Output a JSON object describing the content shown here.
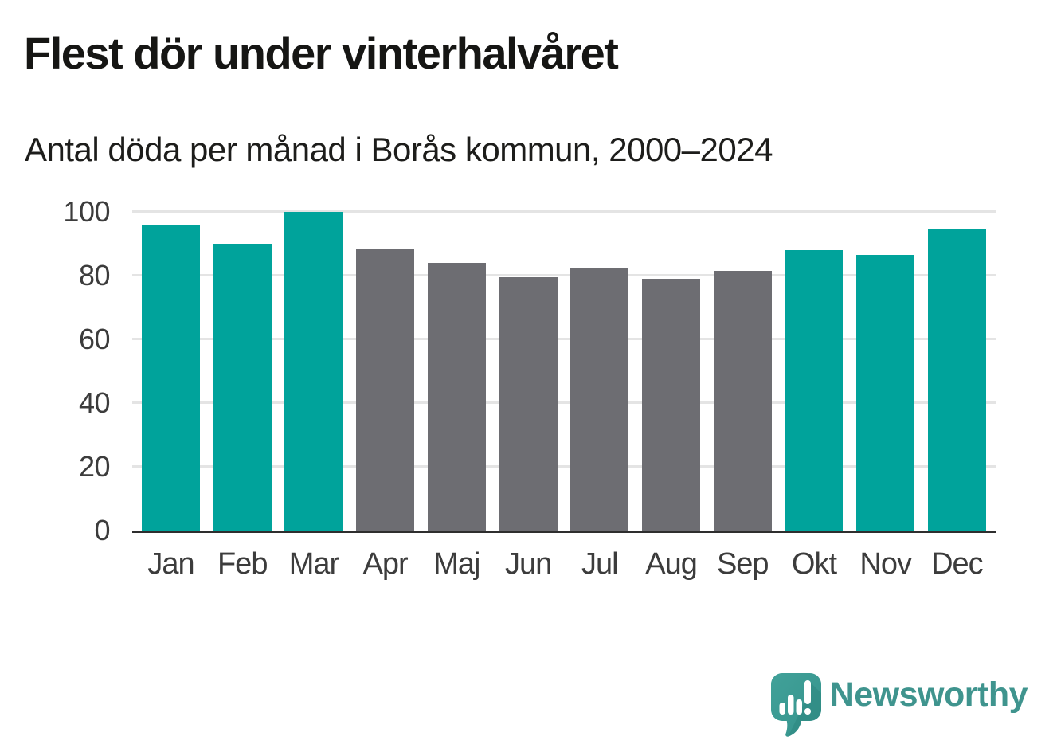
{
  "header": {
    "title": "Flest dör under vinterhalvåret",
    "subtitle": "Antal döda per månad i Borås kommun, 2000–2024"
  },
  "chart_data": {
    "type": "bar",
    "title": "Flest dör under vinterhalvåret",
    "subtitle": "Antal döda per månad i Borås kommun, 2000–2024",
    "categories": [
      "Jan",
      "Feb",
      "Mar",
      "Apr",
      "Maj",
      "Jun",
      "Jul",
      "Aug",
      "Sep",
      "Okt",
      "Nov",
      "Dec"
    ],
    "values": [
      96,
      90,
      100,
      88.5,
      84,
      79.5,
      82.5,
      79,
      81.5,
      88,
      86.5,
      94.5
    ],
    "groups": [
      "winter",
      "winter",
      "winter",
      "summer",
      "summer",
      "summer",
      "summer",
      "summer",
      "summer",
      "winter",
      "winter",
      "winter"
    ],
    "colors": {
      "winter": "#00a39b",
      "summer": "#6d6d72"
    },
    "xlabel": "",
    "ylabel": "",
    "ylim": [
      0,
      100
    ],
    "yticks": [
      0,
      20,
      40,
      60,
      80,
      100
    ],
    "grid": true,
    "legend": false,
    "axis_color": "#2e2e2e",
    "gridline_color": "#e4e4e4",
    "tick_label_color": "#3c3c3c"
  },
  "footer": {
    "brand": "Newsworthy",
    "brand_color": "#3f948e",
    "logo_icon": "newsworthy-speech-bubble-chart-icon"
  }
}
